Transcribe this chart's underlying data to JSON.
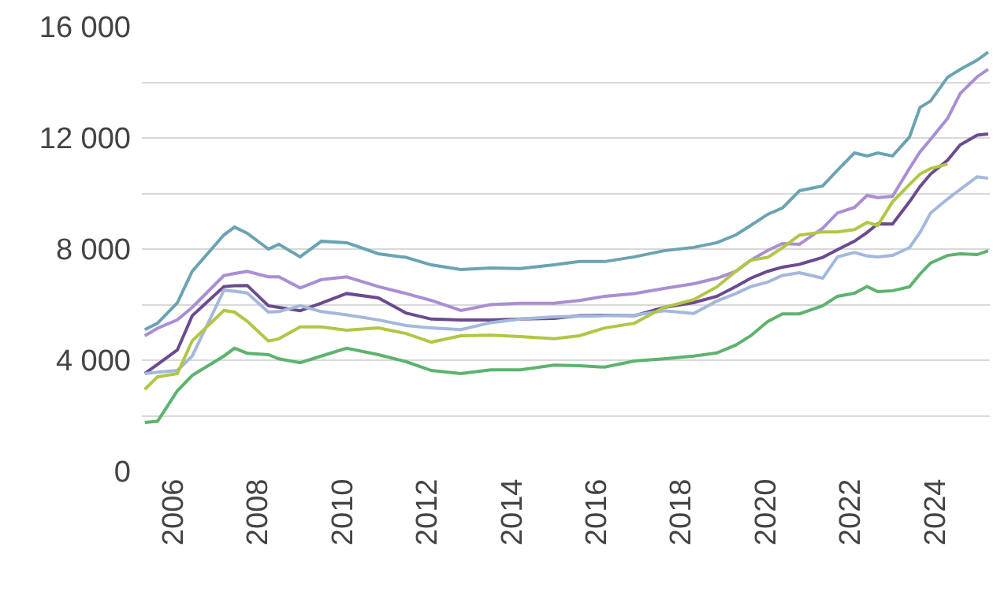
{
  "chart_data": {
    "type": "line",
    "x": [
      2005.33,
      2005.63,
      2006.1,
      2006.45,
      2007.2,
      2007.45,
      2007.75,
      2008.25,
      2008.5,
      2009.0,
      2009.5,
      2010.1,
      2010.85,
      2011.5,
      2012.1,
      2012.8,
      2013.5,
      2014.2,
      2015.0,
      2015.6,
      2016.2,
      2016.9,
      2017.6,
      2018.3,
      2018.85,
      2019.3,
      2019.65,
      2020.05,
      2020.4,
      2020.8,
      2021.35,
      2021.7,
      2022.1,
      2022.4,
      2022.65,
      2023.0,
      2023.4,
      2023.65,
      2023.9,
      2024.3,
      2024.6,
      2025.0,
      2025.26
    ],
    "series": [
      {
        "color": "#6ba3b3",
        "values": [
          5100,
          5330,
          6070,
          7200,
          8510,
          8790,
          8570,
          8000,
          8170,
          7720,
          8280,
          8230,
          7830,
          7700,
          7430,
          7260,
          7320,
          7300,
          7430,
          7550,
          7550,
          7720,
          7940,
          8060,
          8230,
          8510,
          8850,
          9250,
          9480,
          10100,
          10270,
          10840,
          11460,
          11350,
          11460,
          11350,
          12030,
          13100,
          13330,
          14180,
          14470,
          14800,
          15090
        ]
      },
      {
        "color": "#a98ed4",
        "values": [
          4880,
          5150,
          5450,
          5900,
          7050,
          7120,
          7200,
          7000,
          7000,
          6600,
          6900,
          7000,
          6650,
          6400,
          6150,
          5790,
          6000,
          6050,
          6050,
          6150,
          6300,
          6400,
          6580,
          6750,
          6950,
          7200,
          7600,
          7950,
          8200,
          8170,
          8750,
          9300,
          9500,
          9930,
          9850,
          9900,
          10900,
          11500,
          11950,
          12700,
          13600,
          14200,
          14470
        ]
      },
      {
        "color": "#6b4b8f",
        "values": [
          3520,
          3850,
          4370,
          5600,
          6650,
          6680,
          6690,
          5960,
          5900,
          5780,
          6050,
          6400,
          6240,
          5700,
          5480,
          5450,
          5450,
          5480,
          5500,
          5600,
          5620,
          5600,
          5900,
          6070,
          6300,
          6650,
          6950,
          7200,
          7350,
          7450,
          7700,
          7980,
          8280,
          8600,
          8910,
          8900,
          9700,
          10250,
          10700,
          11200,
          11750,
          12100,
          12140
        ]
      },
      {
        "color": "#a3b8dc",
        "values": [
          3520,
          3570,
          3630,
          4150,
          6520,
          6480,
          6420,
          5730,
          5750,
          5960,
          5750,
          5630,
          5450,
          5250,
          5160,
          5100,
          5350,
          5480,
          5560,
          5580,
          5600,
          5620,
          5780,
          5680,
          6130,
          6400,
          6650,
          6810,
          7050,
          7150,
          6950,
          7720,
          7880,
          7750,
          7720,
          7770,
          8050,
          8600,
          9300,
          9800,
          10150,
          10600,
          10550
        ]
      },
      {
        "color": "#b2c645",
        "values": [
          2950,
          3400,
          3520,
          4700,
          5790,
          5730,
          5400,
          4690,
          4770,
          5200,
          5200,
          5080,
          5160,
          4960,
          4650,
          4880,
          4900,
          4850,
          4770,
          4880,
          5160,
          5330,
          5900,
          6180,
          6640,
          7200,
          7600,
          7700,
          8050,
          8500,
          8620,
          8620,
          8700,
          8960,
          8850,
          9700,
          10320,
          10700,
          10900,
          11060,
          null,
          null,
          null
        ]
      },
      {
        "color": "#5db36e",
        "values": [
          1760,
          1800,
          2900,
          3450,
          4150,
          4430,
          4250,
          4200,
          4050,
          3910,
          4150,
          4430,
          4200,
          3950,
          3630,
          3520,
          3650,
          3650,
          3820,
          3800,
          3750,
          3970,
          4050,
          4150,
          4260,
          4550,
          4880,
          5390,
          5670,
          5670,
          5960,
          6300,
          6410,
          6650,
          6470,
          6500,
          6640,
          7100,
          7500,
          7770,
          7830,
          7800,
          7940
        ]
      }
    ],
    "xlim": [
      2005.26,
      2025.3
    ],
    "xticks": [
      2006,
      2008,
      2010,
      2012,
      2014,
      2016,
      2018,
      2020,
      2022,
      2024
    ],
    "ylim": [
      0,
      16000
    ],
    "yticks": [
      0,
      {
        "value": 2000,
        "label": null
      },
      {
        "value": 4000,
        "label": "4 000"
      },
      {
        "value": 6000,
        "label": null
      },
      {
        "value": 8000,
        "label": "8 000"
      },
      {
        "value": 10000,
        "label": null
      },
      {
        "value": 12000,
        "label": "12 000"
      },
      {
        "value": 14000,
        "label": null
      },
      {
        "value": 16000,
        "label": "16 000"
      }
    ],
    "grid": "y",
    "marker": "none",
    "line_style": "solid"
  }
}
